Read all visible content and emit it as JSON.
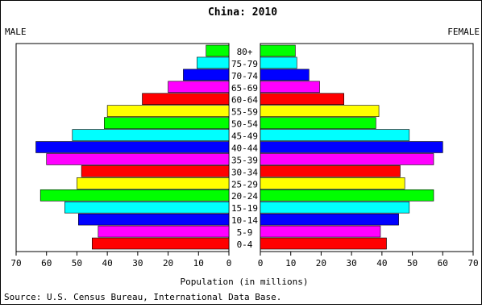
{
  "chart_data": {
    "type": "bar",
    "title": "China: 2010",
    "left_label": "MALE",
    "right_label": "FEMALE",
    "xlabel": "Population (in millions)",
    "source": "Source: U.S. Census Bureau, International Data Base.",
    "xlim": [
      0,
      70
    ],
    "ticks": [
      70,
      60,
      50,
      40,
      30,
      20,
      10,
      0
    ],
    "age_groups": [
      "80+",
      "75-79",
      "70-74",
      "65-69",
      "60-64",
      "55-59",
      "50-54",
      "45-49",
      "40-44",
      "35-39",
      "30-34",
      "25-29",
      "20-24",
      "15-19",
      "10-14",
      "5-9",
      "0-4"
    ],
    "series": [
      {
        "name": "MALE",
        "values": [
          7.5,
          10.5,
          15,
          20,
          28.5,
          40,
          41,
          51.5,
          63.5,
          60,
          48.5,
          50,
          62,
          54,
          49.5,
          43,
          45
        ]
      },
      {
        "name": "FEMALE",
        "values": [
          11.5,
          12,
          16,
          19.5,
          27.5,
          39,
          38,
          49,
          60,
          57,
          46,
          47.5,
          57,
          49,
          45.5,
          39.5,
          41.5
        ]
      }
    ],
    "colors": [
      "#ff0000",
      "#ff00ff",
      "#0000ff",
      "#00ffff",
      "#00ff00",
      "#ffff00"
    ],
    "grid": false
  }
}
